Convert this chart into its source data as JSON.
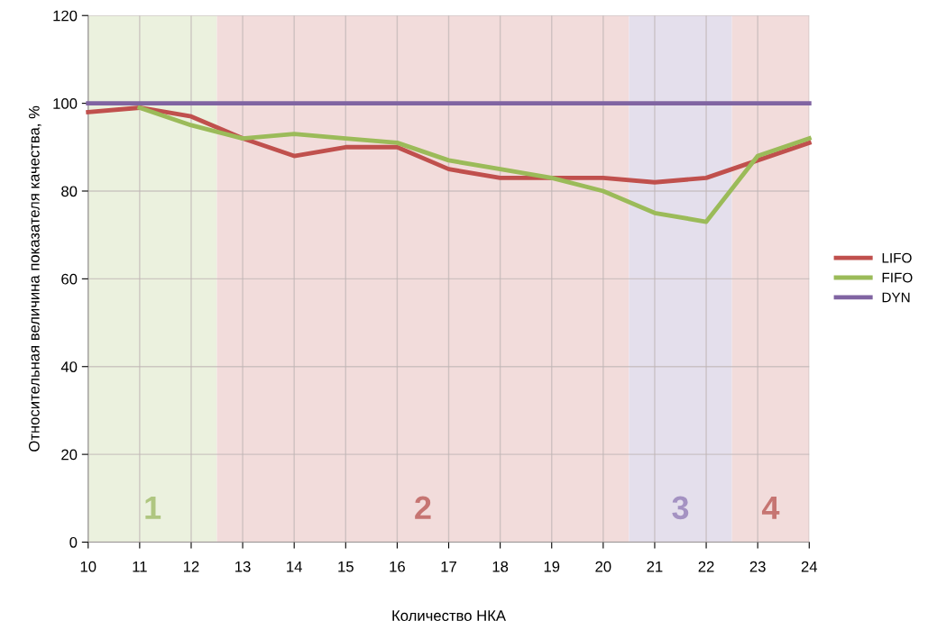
{
  "chart_data": {
    "type": "line",
    "xlabel": "Количество НКА",
    "ylabel": "Относительная величина показателя качества, %",
    "x": [
      10,
      11,
      12,
      13,
      14,
      15,
      16,
      17,
      18,
      19,
      20,
      21,
      22,
      23,
      24
    ],
    "series": [
      {
        "name": "LIFO",
        "color": "#c0504d",
        "values": [
          98,
          99,
          97,
          92,
          88,
          90,
          90,
          85,
          83,
          83,
          83,
          82,
          83,
          87,
          91
        ]
      },
      {
        "name": "FIFO",
        "color": "#9bbb59",
        "values": [
          null,
          99,
          95,
          92,
          93,
          92,
          91,
          87,
          85,
          83,
          80,
          75,
          73,
          88,
          92
        ]
      },
      {
        "name": "DYN",
        "color": "#8064a2",
        "values": [
          100,
          100,
          100,
          100,
          100,
          100,
          100,
          100,
          100,
          100,
          100,
          100,
          100,
          100,
          100
        ]
      }
    ],
    "bands": [
      {
        "axis": "x",
        "from": 10,
        "to": 12.5,
        "label": "1",
        "color": "#ebf1de"
      },
      {
        "axis": "x",
        "from": 12.5,
        "to": 20.5,
        "label": "2",
        "color": "#f2dcdb"
      },
      {
        "axis": "x",
        "from": 20.5,
        "to": 22.5,
        "label": "3",
        "color": "#e4dfec"
      },
      {
        "axis": "x",
        "from": 22.5,
        "to": 24,
        "label": "4",
        "color": "#f2dcdb"
      }
    ],
    "xlim": [
      10,
      24
    ],
    "xticks": [
      10,
      11,
      12,
      13,
      14,
      15,
      16,
      17,
      18,
      19,
      20,
      21,
      22,
      23,
      24
    ],
    "ylim": [
      0,
      120
    ],
    "yticks": [
      0,
      20,
      40,
      60,
      80,
      100,
      120
    ],
    "grid": true,
    "legend": "right",
    "marker": "none",
    "line_style": "solid"
  }
}
